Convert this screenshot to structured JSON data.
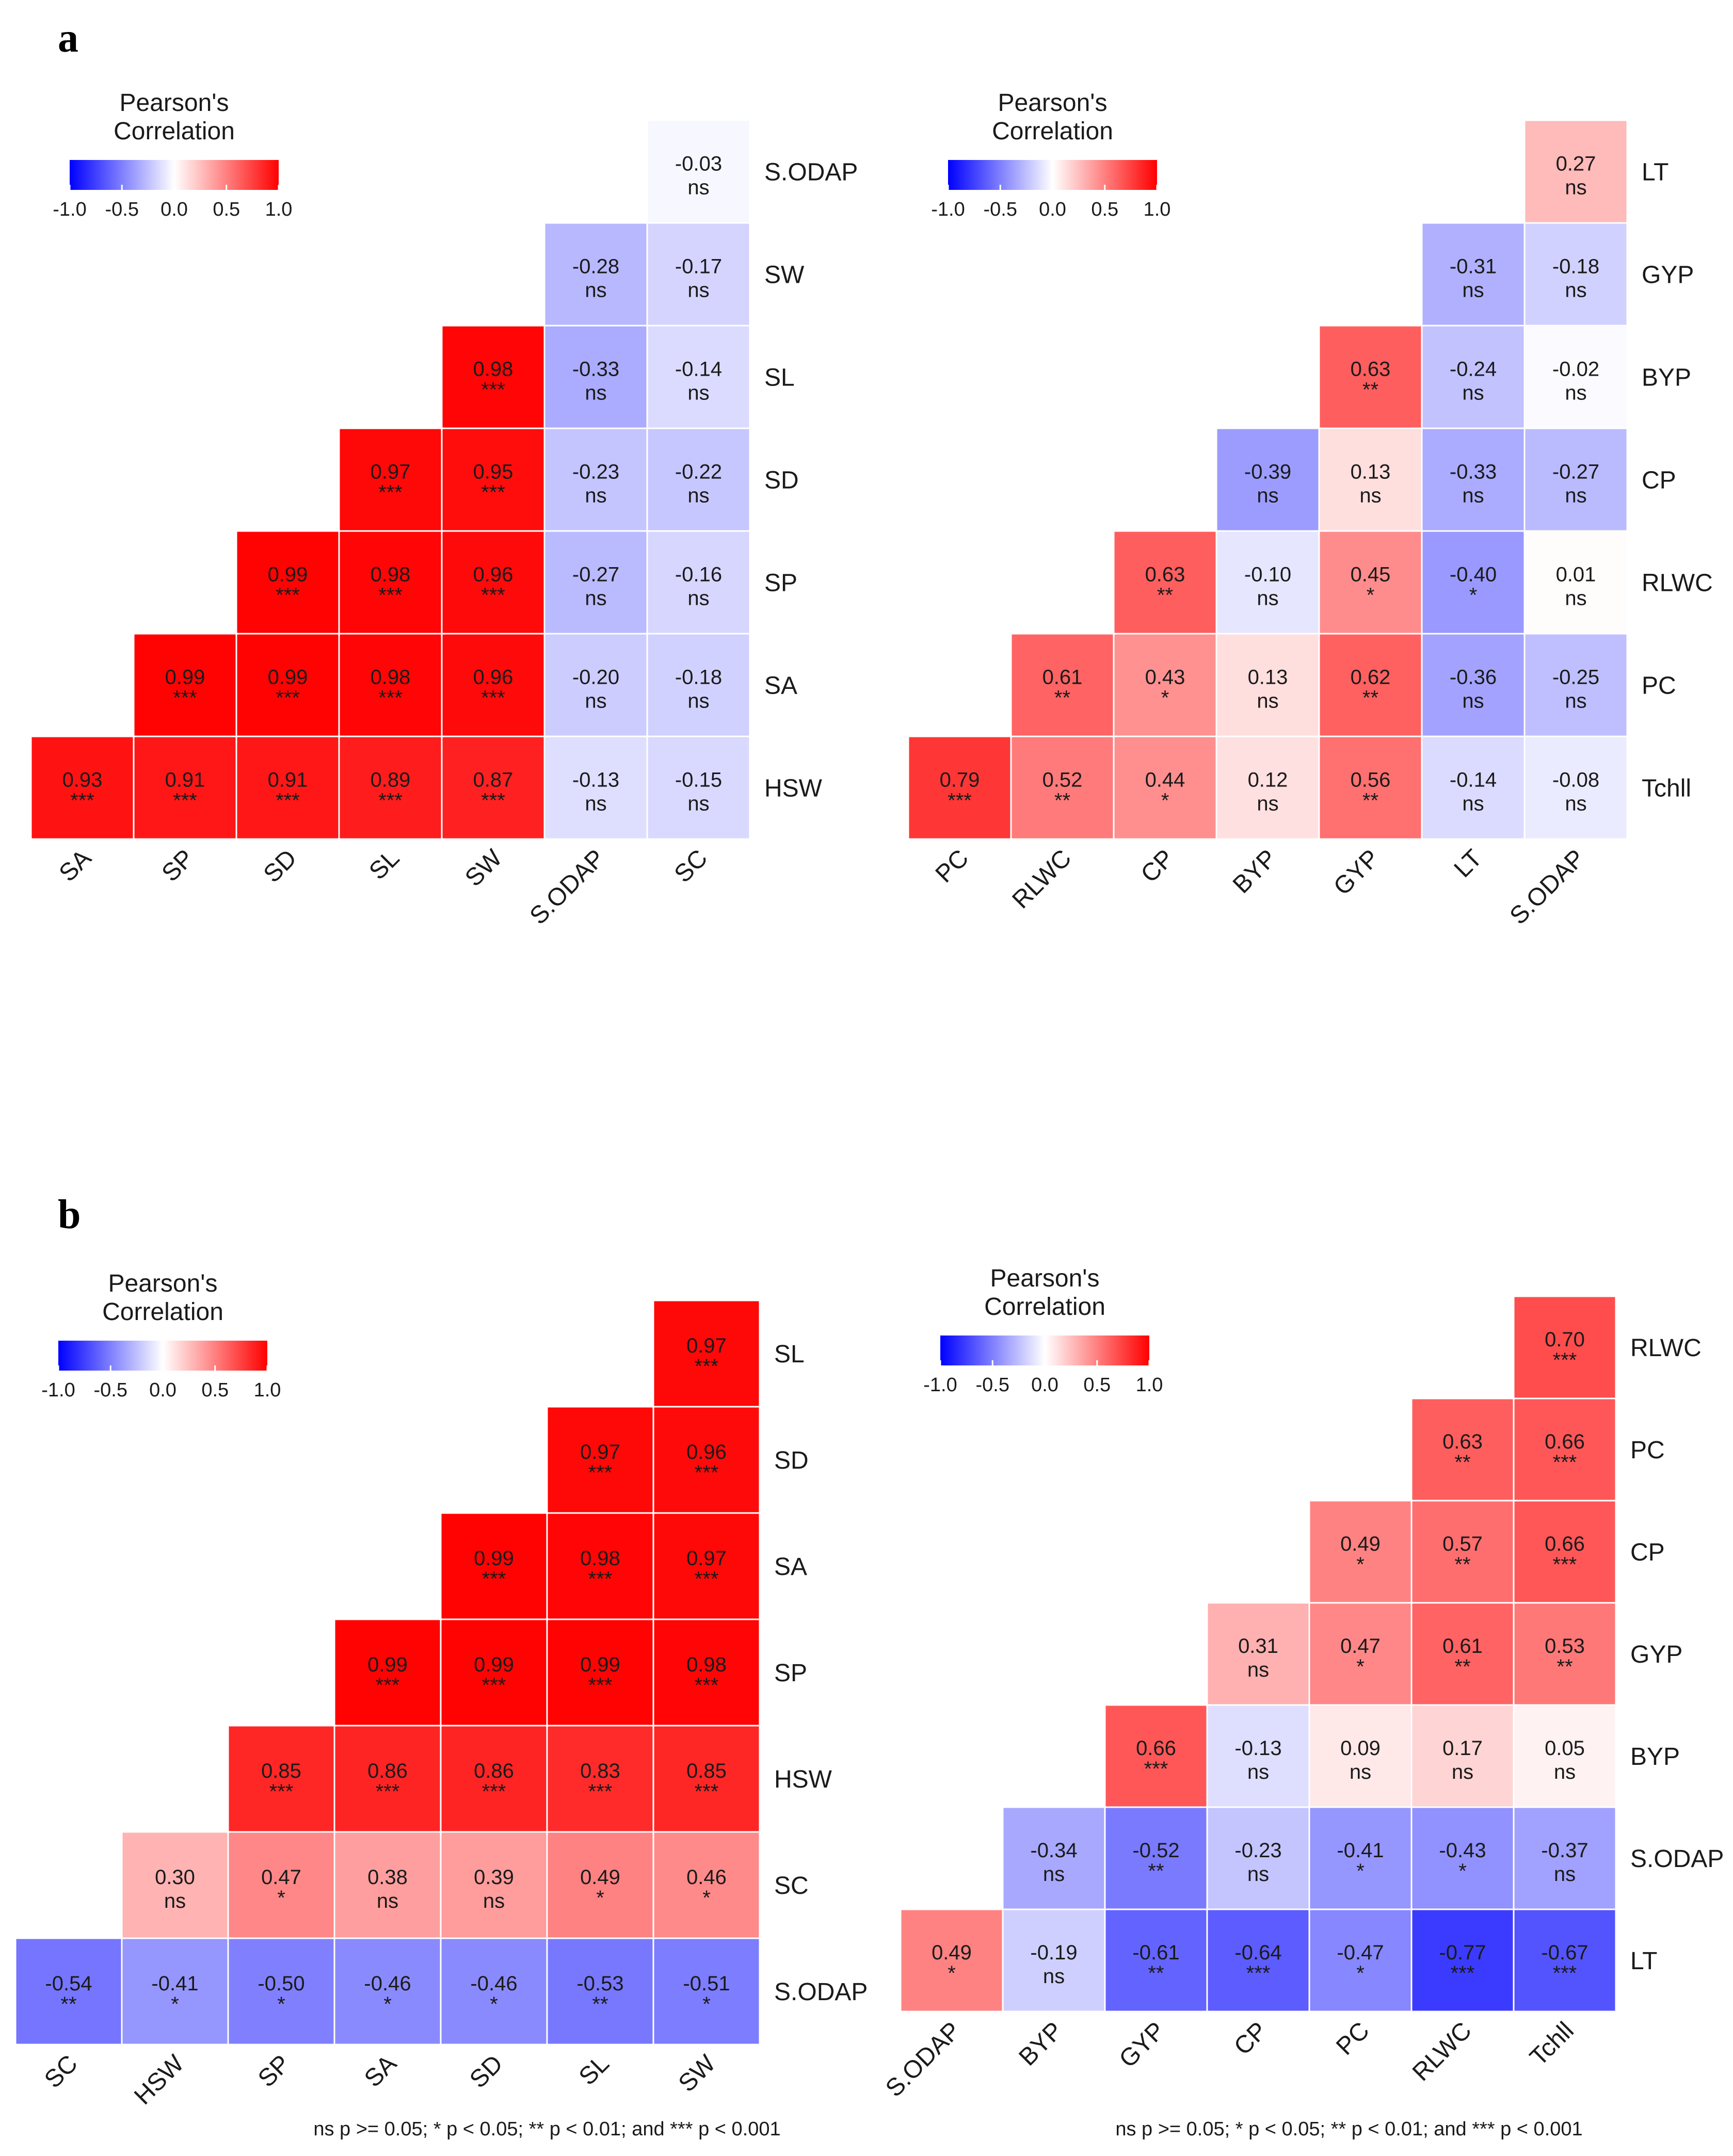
{
  "panel_labels": {
    "a": "a",
    "b": "b"
  },
  "legend": {
    "title_line1": "Pearson's",
    "title_line2": "Correlation",
    "ticks": [
      "-1.0",
      "-0.5",
      "0.0",
      "0.5",
      "1.0"
    ],
    "tick_values": [
      -1.0,
      -0.5,
      0.0,
      0.5,
      1.0
    ]
  },
  "colors": {
    "negative": "#0000ff",
    "zero": "#ffffff",
    "positive": "#ff0000",
    "cell_border": "#ffffff"
  },
  "footnote": "ns p >= 0.05; * p < 0.05; ** p < 0.01; and *** p < 0.001",
  "chart_data": [
    {
      "type": "heatmap",
      "panel": "a",
      "title": "Pearson's Correlation",
      "columns": [
        "SA",
        "SP",
        "SD",
        "SL",
        "SW",
        "S.ODAP",
        "SC"
      ],
      "rows": [
        "S.ODAP",
        "SW",
        "SL",
        "SD",
        "SP",
        "SA",
        "HSW"
      ],
      "values": [
        [
          null,
          null,
          null,
          null,
          null,
          null,
          -0.03
        ],
        [
          null,
          null,
          null,
          null,
          null,
          -0.28,
          -0.17
        ],
        [
          null,
          null,
          null,
          null,
          0.98,
          -0.33,
          -0.14
        ],
        [
          null,
          null,
          null,
          0.97,
          0.95,
          -0.23,
          -0.22
        ],
        [
          null,
          null,
          0.99,
          0.98,
          0.96,
          -0.27,
          -0.16
        ],
        [
          null,
          0.99,
          0.99,
          0.98,
          0.96,
          -0.2,
          -0.18
        ],
        [
          0.93,
          0.91,
          0.91,
          0.89,
          0.87,
          -0.13,
          -0.15
        ]
      ],
      "labels": [
        [
          null,
          null,
          null,
          null,
          null,
          null,
          "-0.03"
        ],
        [
          null,
          null,
          null,
          null,
          null,
          "-0.28",
          "-0.17"
        ],
        [
          null,
          null,
          null,
          null,
          "0.98",
          "-0.33",
          "-0.14"
        ],
        [
          null,
          null,
          null,
          "0.97",
          "0.95",
          "-0.23",
          "-0.22"
        ],
        [
          null,
          null,
          "0.99",
          "0.98",
          "0.96",
          "-0.27",
          "-0.16"
        ],
        [
          null,
          "0.99",
          "0.99",
          "0.98",
          "0.96",
          "-0.20",
          "-0.18"
        ],
        [
          "0.93",
          "0.91",
          "0.91",
          "0.89",
          "0.87",
          "-0.13",
          "-0.15"
        ]
      ],
      "significance": [
        [
          null,
          null,
          null,
          null,
          null,
          null,
          "ns"
        ],
        [
          null,
          null,
          null,
          null,
          null,
          "ns",
          "ns"
        ],
        [
          null,
          null,
          null,
          null,
          "***",
          "ns",
          "ns"
        ],
        [
          null,
          null,
          null,
          "***",
          "***",
          "ns",
          "ns"
        ],
        [
          null,
          null,
          "***",
          "***",
          "***",
          "ns",
          "ns"
        ],
        [
          null,
          "***",
          "***",
          "***",
          "***",
          "ns",
          "ns"
        ],
        [
          "***",
          "***",
          "***",
          "***",
          "***",
          "ns",
          "ns"
        ]
      ],
      "color_range": [
        -1,
        1
      ]
    },
    {
      "type": "heatmap",
      "panel": "a",
      "title": "Pearson's Correlation",
      "columns": [
        "PC",
        "RLWC",
        "CP",
        "BYP",
        "GYP",
        "LT",
        "S.ODAP"
      ],
      "rows": [
        "LT",
        "GYP",
        "BYP",
        "CP",
        "RLWC",
        "PC",
        "Tchll"
      ],
      "values": [
        [
          null,
          null,
          null,
          null,
          null,
          null,
          0.27
        ],
        [
          null,
          null,
          null,
          null,
          null,
          -0.31,
          -0.18
        ],
        [
          null,
          null,
          null,
          null,
          0.63,
          -0.24,
          -0.02
        ],
        [
          null,
          null,
          null,
          -0.39,
          0.13,
          -0.33,
          -0.27
        ],
        [
          null,
          null,
          0.63,
          -0.1,
          0.45,
          -0.4,
          0.01
        ],
        [
          null,
          0.61,
          0.43,
          0.13,
          0.62,
          -0.36,
          -0.25
        ],
        [
          0.79,
          0.52,
          0.44,
          0.12,
          0.56,
          -0.14,
          -0.08
        ]
      ],
      "labels": [
        [
          null,
          null,
          null,
          null,
          null,
          null,
          "0.27"
        ],
        [
          null,
          null,
          null,
          null,
          null,
          "-0.31",
          "-0.18"
        ],
        [
          null,
          null,
          null,
          null,
          "0.63",
          "-0.24",
          "-0.02"
        ],
        [
          null,
          null,
          null,
          "-0.39",
          "0.13",
          "-0.33",
          "-0.27"
        ],
        [
          null,
          null,
          "0.63",
          "-0.10",
          "0.45",
          "-0.40",
          "0.01"
        ],
        [
          null,
          "0.61",
          "0.43",
          "0.13",
          "0.62",
          "-0.36",
          "-0.25"
        ],
        [
          "0.79",
          "0.52",
          "0.44",
          "0.12",
          "0.56",
          "-0.14",
          "-0.08"
        ]
      ],
      "significance": [
        [
          null,
          null,
          null,
          null,
          null,
          null,
          "ns"
        ],
        [
          null,
          null,
          null,
          null,
          null,
          "ns",
          "ns"
        ],
        [
          null,
          null,
          null,
          null,
          "**",
          "ns",
          "ns"
        ],
        [
          null,
          null,
          null,
          "ns",
          "ns",
          "ns",
          "ns"
        ],
        [
          null,
          null,
          "**",
          "ns",
          "*",
          "*",
          "ns"
        ],
        [
          null,
          "**",
          "*",
          "ns",
          "**",
          "ns",
          "ns"
        ],
        [
          "***",
          "**",
          "*",
          "ns",
          "**",
          "ns",
          "ns"
        ]
      ],
      "color_range": [
        -1,
        1
      ]
    },
    {
      "type": "heatmap",
      "panel": "b",
      "title": "Pearson's Correlation",
      "columns": [
        "SC",
        "HSW",
        "SP",
        "SA",
        "SD",
        "SL",
        "SW"
      ],
      "rows": [
        "SL",
        "SD",
        "SA",
        "SP",
        "HSW",
        "SC",
        "S.ODAP"
      ],
      "values": [
        [
          null,
          null,
          null,
          null,
          null,
          null,
          0.97
        ],
        [
          null,
          null,
          null,
          null,
          null,
          0.97,
          0.96
        ],
        [
          null,
          null,
          null,
          null,
          0.99,
          0.98,
          0.97
        ],
        [
          null,
          null,
          null,
          0.99,
          0.99,
          0.99,
          0.98
        ],
        [
          null,
          null,
          0.85,
          0.86,
          0.86,
          0.83,
          0.85
        ],
        [
          null,
          0.3,
          0.47,
          0.38,
          0.39,
          0.49,
          0.46
        ],
        [
          -0.54,
          -0.41,
          -0.5,
          -0.46,
          -0.46,
          -0.53,
          -0.51
        ]
      ],
      "labels": [
        [
          null,
          null,
          null,
          null,
          null,
          null,
          "0.97"
        ],
        [
          null,
          null,
          null,
          null,
          null,
          "0.97",
          "0.96"
        ],
        [
          null,
          null,
          null,
          null,
          "0.99",
          "0.98",
          "0.97"
        ],
        [
          null,
          null,
          null,
          "0.99",
          "0.99",
          "0.99",
          "0.98"
        ],
        [
          null,
          null,
          "0.85",
          "0.86",
          "0.86",
          "0.83",
          "0.85"
        ],
        [
          null,
          "0.30",
          "0.47",
          "0.38",
          "0.39",
          "0.49",
          "0.46"
        ],
        [
          "-0.54",
          "-0.41",
          "-0.50",
          "-0.46",
          "-0.46",
          "-0.53",
          "-0.51"
        ]
      ],
      "significance": [
        [
          null,
          null,
          null,
          null,
          null,
          null,
          "***"
        ],
        [
          null,
          null,
          null,
          null,
          null,
          "***",
          "***"
        ],
        [
          null,
          null,
          null,
          null,
          "***",
          "***",
          "***"
        ],
        [
          null,
          null,
          null,
          "***",
          "***",
          "***",
          "***"
        ],
        [
          null,
          null,
          "***",
          "***",
          "***",
          "***",
          "***"
        ],
        [
          null,
          "ns",
          "*",
          "ns",
          "ns",
          "*",
          "*"
        ],
        [
          "**",
          "*",
          "*",
          "*",
          "*",
          "**",
          "*"
        ]
      ],
      "color_range": [
        -1,
        1
      ]
    },
    {
      "type": "heatmap",
      "panel": "b",
      "title": "Pearson's Correlation",
      "columns": [
        "S.ODAP",
        "BYP",
        "GYP",
        "CP",
        "PC",
        "RLWC",
        "Tchll"
      ],
      "rows": [
        "RLWC",
        "PC",
        "CP",
        "GYP",
        "BYP",
        "S.ODAP",
        "LT"
      ],
      "values": [
        [
          null,
          null,
          null,
          null,
          null,
          null,
          0.7
        ],
        [
          null,
          null,
          null,
          null,
          null,
          0.63,
          0.66
        ],
        [
          null,
          null,
          null,
          null,
          0.49,
          0.57,
          0.66
        ],
        [
          null,
          null,
          null,
          0.31,
          0.47,
          0.61,
          0.53
        ],
        [
          null,
          null,
          0.66,
          -0.13,
          0.09,
          0.17,
          0.05
        ],
        [
          null,
          -0.34,
          -0.52,
          -0.23,
          -0.41,
          -0.43,
          -0.37
        ],
        [
          0.49,
          -0.19,
          -0.61,
          -0.64,
          -0.47,
          -0.77,
          -0.67
        ]
      ],
      "labels": [
        [
          null,
          null,
          null,
          null,
          null,
          null,
          "0.70"
        ],
        [
          null,
          null,
          null,
          null,
          null,
          "0.63",
          "0.66"
        ],
        [
          null,
          null,
          null,
          null,
          "0.49",
          "0.57",
          "0.66"
        ],
        [
          null,
          null,
          null,
          "0.31",
          "0.47",
          "0.61",
          "0.53"
        ],
        [
          null,
          null,
          "0.66",
          "-0.13",
          "0.09",
          "0.17",
          "0.05"
        ],
        [
          null,
          "-0.34",
          "-0.52",
          "-0.23",
          "-0.41",
          "-0.43",
          "-0.37"
        ],
        [
          "0.49",
          "-0.19",
          "-0.61",
          "-0.64",
          "-0.47",
          "-0.77",
          "-0.67"
        ]
      ],
      "significance": [
        [
          null,
          null,
          null,
          null,
          null,
          null,
          "***"
        ],
        [
          null,
          null,
          null,
          null,
          null,
          "**",
          "***"
        ],
        [
          null,
          null,
          null,
          null,
          "*",
          "**",
          "***"
        ],
        [
          null,
          null,
          null,
          "ns",
          "*",
          "**",
          "**"
        ],
        [
          null,
          null,
          "***",
          "ns",
          "ns",
          "ns",
          "ns"
        ],
        [
          null,
          "ns",
          "**",
          "ns",
          "*",
          "*",
          "ns"
        ],
        [
          "*",
          "ns",
          "**",
          "***",
          "*",
          "***",
          "***"
        ]
      ],
      "color_range": [
        -1,
        1
      ]
    }
  ]
}
